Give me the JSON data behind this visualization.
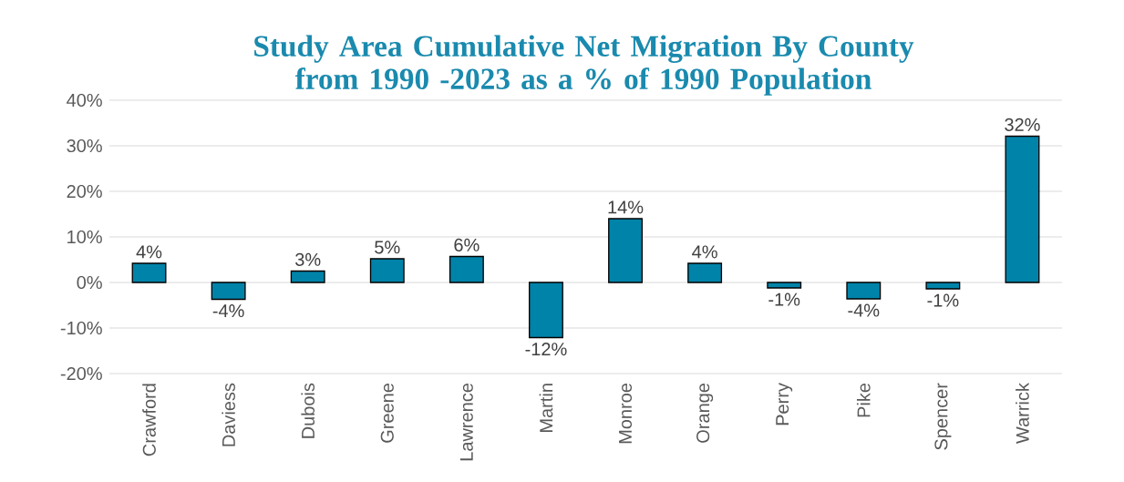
{
  "chart_data": {
    "type": "bar",
    "title": "Study Area Cumulative Net Migration By County from 1990 -2023 as a % of 1990 Population",
    "categories": [
      "Crawford",
      "Daviess",
      "Dubois",
      "Greene",
      "Lawrence",
      "Martin",
      "Monroe",
      "Orange",
      "Perry",
      "Pike",
      "Spencer",
      "Warrick"
    ],
    "values": [
      4.2,
      -3.7,
      2.5,
      5.2,
      5.7,
      -12.1,
      14.0,
      4.2,
      -1.2,
      -3.6,
      -1.4,
      32.1
    ],
    "value_labels": [
      "4%",
      "-4%",
      "3%",
      "5%",
      "6%",
      "-12%",
      "14%",
      "4%",
      "-1%",
      "-4%",
      "-1%",
      "32%"
    ],
    "color": "#0083a9",
    "ylim": [
      -20,
      40
    ],
    "yticks": [
      {
        "value": -20,
        "label": "-20%"
      },
      {
        "value": -10,
        "label": "-10%"
      },
      {
        "value": 0,
        "label": "0%"
      },
      {
        "value": 10,
        "label": "10%"
      },
      {
        "value": 20,
        "label": "20%"
      },
      {
        "value": 30,
        "label": "30%"
      },
      {
        "value": 40,
        "label": "40%"
      }
    ],
    "grid": "y"
  }
}
